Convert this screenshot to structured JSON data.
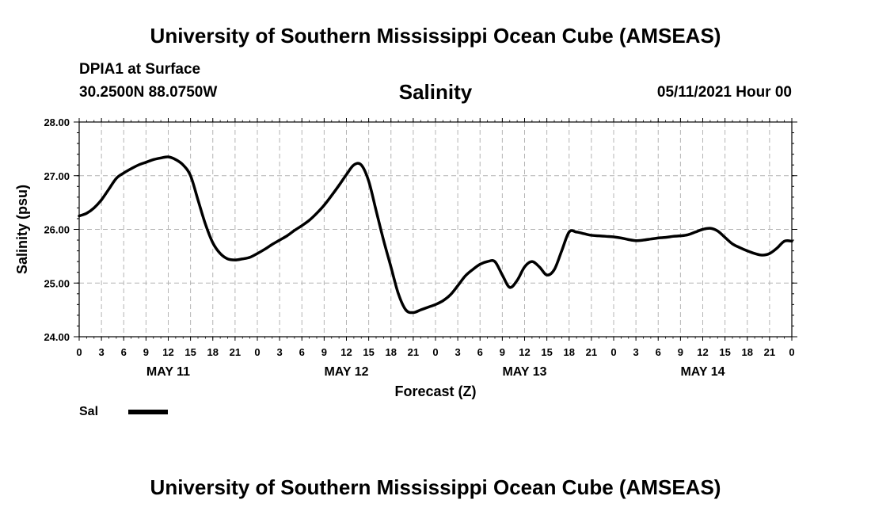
{
  "header": {
    "title": "University of Southern Mississippi Ocean Cube (AMSEAS)",
    "station": "DPIA1 at Surface",
    "coords": "30.2500N  88.0750W",
    "chart_title": "Salinity",
    "datetime": "05/11/2021 Hour 00"
  },
  "footer": {
    "title": "University of Southern Mississippi Ocean Cube (AMSEAS)"
  },
  "legend": {
    "label": "Sal",
    "color": "#000000"
  },
  "chart_data": {
    "type": "line",
    "title": "Salinity",
    "xlabel": "Forecast (Z)",
    "ylabel": "Salinity (psu)",
    "ylim": [
      24,
      28
    ],
    "xlim": [
      0,
      96
    ],
    "yticks": [
      "24.00",
      "25.00",
      "26.00",
      "27.00",
      "28.00"
    ],
    "yticks_values": [
      24,
      25,
      26,
      27,
      28
    ],
    "xtick_labels": [
      "0",
      "3",
      "6",
      "9",
      "12",
      "15",
      "18",
      "21",
      "0",
      "3",
      "6",
      "9",
      "12",
      "15",
      "18",
      "21",
      "0",
      "3",
      "6",
      "9",
      "12",
      "15",
      "18",
      "21",
      "0",
      "3",
      "6",
      "9",
      "12",
      "15",
      "18",
      "21",
      "0"
    ],
    "day_labels": [
      {
        "label": "MAY 11",
        "hour": 12
      },
      {
        "label": "MAY 12",
        "hour": 36
      },
      {
        "label": "MAY 13",
        "hour": 60
      },
      {
        "label": "MAY 14",
        "hour": 84
      }
    ],
    "grid": true,
    "series": [
      {
        "name": "Sal",
        "x": [
          0,
          1,
          2,
          3,
          4,
          5,
          6,
          7,
          8,
          9,
          10,
          11,
          12,
          13,
          14,
          15,
          16,
          17,
          18,
          19,
          20,
          21,
          22,
          23,
          24,
          25,
          26,
          27,
          28,
          29,
          30,
          31,
          32,
          33,
          34,
          35,
          36,
          37,
          38,
          39,
          40,
          41,
          42,
          43,
          44,
          45,
          46,
          47,
          48,
          49,
          50,
          51,
          52,
          53,
          54,
          55,
          56,
          57,
          58,
          59,
          60,
          61,
          62,
          63,
          64,
          65,
          66,
          67,
          68,
          69,
          70,
          71,
          72,
          73,
          74,
          75,
          76,
          77,
          78,
          79,
          80,
          81,
          82,
          83,
          84,
          85,
          86,
          87,
          88,
          89,
          90,
          91,
          92,
          93,
          94,
          95,
          96
        ],
        "values": [
          26.25,
          26.3,
          26.4,
          26.55,
          26.75,
          26.95,
          27.05,
          27.13,
          27.2,
          27.25,
          27.3,
          27.33,
          27.35,
          27.3,
          27.2,
          27.0,
          26.55,
          26.1,
          25.75,
          25.55,
          25.45,
          25.43,
          25.45,
          25.48,
          25.55,
          25.63,
          25.72,
          25.8,
          25.88,
          25.98,
          26.07,
          26.17,
          26.3,
          26.45,
          26.63,
          26.82,
          27.02,
          27.2,
          27.2,
          26.9,
          26.35,
          25.8,
          25.3,
          24.8,
          24.5,
          24.45,
          24.5,
          24.55,
          24.6,
          24.67,
          24.78,
          24.95,
          25.13,
          25.25,
          25.35,
          25.4,
          25.4,
          25.15,
          24.92,
          25.05,
          25.3,
          25.4,
          25.3,
          25.15,
          25.25,
          25.6,
          25.95,
          25.95,
          25.92,
          25.89,
          25.88,
          25.87,
          25.86,
          25.84,
          25.81,
          25.79,
          25.8,
          25.82,
          25.84,
          25.85,
          25.87,
          25.88,
          25.9,
          25.95,
          26.0,
          26.02,
          25.97,
          25.85,
          25.73,
          25.66,
          25.6,
          25.55,
          25.52,
          25.55,
          25.65,
          25.78,
          25.78
        ]
      }
    ]
  }
}
